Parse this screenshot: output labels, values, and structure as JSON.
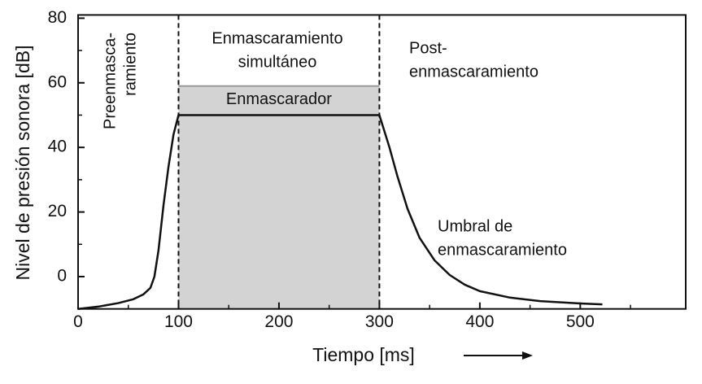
{
  "chart_data": {
    "type": "line",
    "xlabel": "Tiempo [ms]",
    "ylabel": "Nivel de presión sonora [dB]",
    "xlim": [
      0,
      605
    ],
    "ylim": [
      -10,
      81
    ],
    "xticks": [
      0,
      100,
      200,
      300,
      400,
      500
    ],
    "yticks": [
      0,
      20,
      40,
      60,
      80
    ],
    "xminorticks": [
      50,
      150,
      250,
      350,
      450,
      550
    ],
    "yminorticks": [
      -10,
      10,
      30,
      50,
      70
    ],
    "masker": {
      "label": "Enmascarador",
      "x": [
        100,
        300
      ],
      "level": 59,
      "color": "#d3d3d3"
    },
    "markers": [
      100,
      300
    ],
    "annotations": {
      "pre": [
        "Preenmasca-",
        "ramiento"
      ],
      "simultaneous": [
        "Enmascaramiento",
        "simultáneo"
      ],
      "post": [
        "Post-",
        "enmascaramiento"
      ],
      "threshold": [
        "Umbral de",
        "enmascaramiento"
      ]
    },
    "series": [
      {
        "name": "Umbral de enmascaramiento",
        "color": "#111111",
        "x": [
          0,
          20,
          40,
          55,
          65,
          72,
          76,
          80,
          85,
          90,
          95,
          100,
          300,
          304,
          310,
          318,
          328,
          340,
          355,
          370,
          385,
          400,
          430,
          460,
          500,
          522
        ],
        "values": [
          -10,
          -9.3,
          -8.2,
          -7,
          -5.5,
          -3.5,
          0,
          8,
          22,
          34,
          44,
          50,
          50,
          46,
          40,
          31,
          21,
          12,
          5,
          0.5,
          -2.5,
          -4.5,
          -6.5,
          -7.6,
          -8.3,
          -8.6
        ]
      }
    ]
  }
}
